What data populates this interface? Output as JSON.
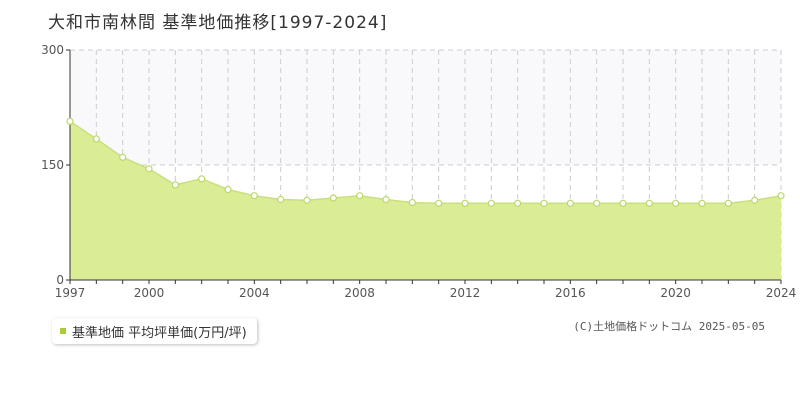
{
  "title": "大和市南林間 基準地価推移[1997-2024]",
  "legend_label": "基準地価 平均坪単価(万円/坪)",
  "copyright": "(C)土地価格ドットコム 2025-05-05",
  "colors": {
    "area_fill": "#dbed94",
    "line": "#c8e080",
    "marker_fill": "#ffffff",
    "marker_stroke": "#b9d96a",
    "legend_marker": "#a8cc3a",
    "upper_band": "#f9f9fb",
    "grid": "#cccccc"
  },
  "chart_data": {
    "type": "area",
    "title": "大和市南林間 基準地価推移[1997-2024]",
    "xlabel": "",
    "ylabel": "",
    "x": [
      1997,
      1998,
      1999,
      2000,
      2001,
      2002,
      2003,
      2004,
      2005,
      2006,
      2007,
      2008,
      2009,
      2010,
      2011,
      2012,
      2013,
      2014,
      2015,
      2016,
      2017,
      2018,
      2019,
      2020,
      2021,
      2022,
      2023,
      2024
    ],
    "series": [
      {
        "name": "基準地価 平均坪単価(万円/坪)",
        "values": [
          207,
          184,
          160,
          145,
          124,
          132,
          118,
          110,
          105,
          104,
          107,
          110,
          105,
          101,
          100,
          100,
          100,
          100,
          100,
          100,
          100,
          100,
          100,
          100,
          100,
          100,
          104,
          110
        ]
      }
    ],
    "xlim": [
      1997,
      2024
    ],
    "ylim": [
      0,
      300
    ],
    "y_ticks": [
      0,
      150,
      300
    ],
    "x_ticks": [
      1997,
      2000,
      2004,
      2008,
      2012,
      2016,
      2020,
      2024
    ],
    "grid": true
  }
}
